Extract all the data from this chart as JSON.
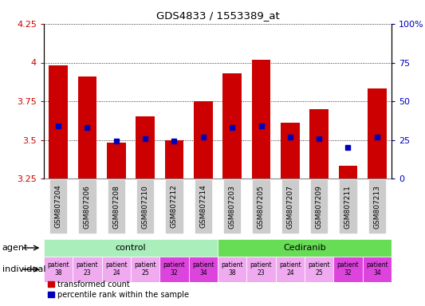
{
  "title": "GDS4833 / 1553389_at",
  "samples": [
    "GSM807204",
    "GSM807206",
    "GSM807208",
    "GSM807210",
    "GSM807212",
    "GSM807214",
    "GSM807203",
    "GSM807205",
    "GSM807207",
    "GSM807209",
    "GSM807211",
    "GSM807213"
  ],
  "bar_values": [
    3.98,
    3.91,
    3.48,
    3.65,
    3.5,
    3.75,
    3.93,
    4.02,
    3.61,
    3.7,
    3.33,
    3.83
  ],
  "percentile_values": [
    34,
    33,
    24,
    26,
    24,
    27,
    33,
    34,
    27,
    26,
    20,
    27
  ],
  "ylim_left": [
    3.25,
    4.25
  ],
  "ylim_right": [
    0,
    100
  ],
  "yticks_left": [
    3.25,
    3.5,
    3.75,
    4.0,
    4.25
  ],
  "ytick_labels_left": [
    "3.25",
    "3.5",
    "3.75",
    "4",
    "4.25"
  ],
  "yticks_right": [
    0,
    25,
    50,
    75,
    100
  ],
  "ytick_labels_right": [
    "0",
    "25",
    "50",
    "75",
    "100%"
  ],
  "bar_color": "#cc0000",
  "percentile_color": "#0000bb",
  "bar_bottom": 3.25,
  "agent_control_color": "#aaeebb",
  "agent_cediranib_color": "#66dd55",
  "individual_colors": [
    "#f0aaf0",
    "#f0aaf0",
    "#f0aaf0",
    "#f0aaf0",
    "#dd44dd",
    "#dd44dd",
    "#f0aaf0",
    "#f0aaf0",
    "#f0aaf0",
    "#f0aaf0",
    "#dd44dd",
    "#dd44dd"
  ],
  "sample_bg_color": "#cccccc",
  "left_axis_color": "#cc0000",
  "right_axis_color": "#0000bb",
  "legend_red_label": "transformed count",
  "legend_blue_label": "percentile rank within the sample",
  "individuals": [
    "patient\n38",
    "patient\n23",
    "patient\n24",
    "patient\n25",
    "patient\n32",
    "patient\n34",
    "patient\n38",
    "patient\n23",
    "patient\n24",
    "patient\n25",
    "patient\n32",
    "patient\n34"
  ]
}
